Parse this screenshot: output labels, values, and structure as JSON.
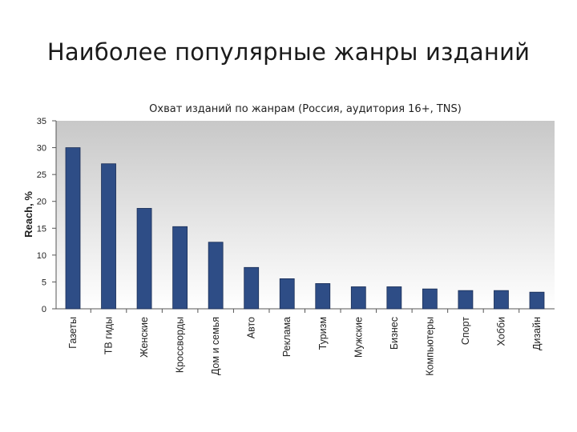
{
  "slide": {
    "title": "Наиболее популярные жанры изданий"
  },
  "chart_data": {
    "type": "bar",
    "title": "Охват изданий по жанрам (Россия, аудитория 16+, TNS)",
    "xlabel": "",
    "ylabel": "Reach, %",
    "ylim": [
      0,
      35
    ],
    "yticks": [
      0,
      5,
      10,
      15,
      20,
      25,
      30,
      35
    ],
    "categories": [
      "Газеты",
      "ТВ гиды",
      "Женские",
      "Кроссворды",
      "Дом и семья",
      "Авто",
      "Реклама",
      "Туризм",
      "Мужские",
      "Бизнес",
      "Компьютеры",
      "Спорт",
      "Хобби",
      "Дизайн"
    ],
    "values": [
      30,
      27,
      18.7,
      15.3,
      12.4,
      7.7,
      5.6,
      4.7,
      4.1,
      4.1,
      3.7,
      3.4,
      3.4,
      3.1
    ],
    "bar_color": "#2e4d86",
    "grid": false
  }
}
